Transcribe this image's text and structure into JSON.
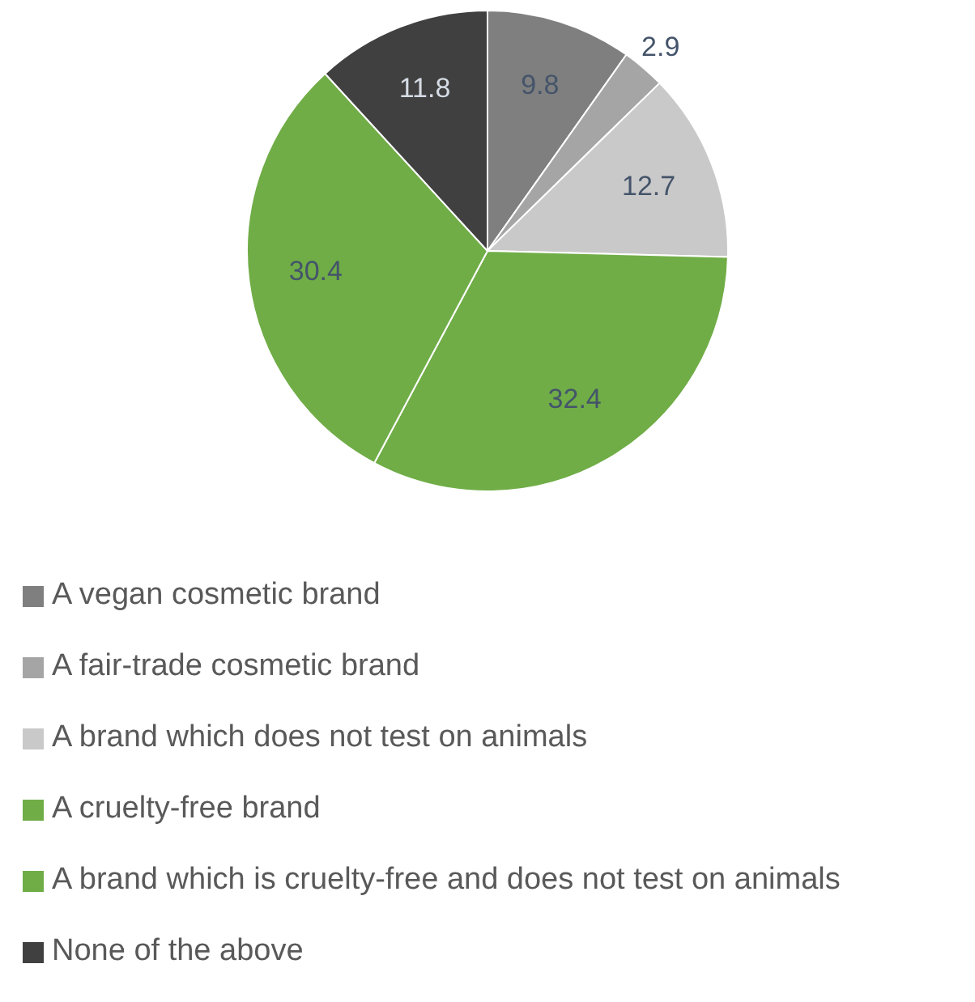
{
  "chart_data": {
    "type": "pie",
    "categories": [
      "A vegan cosmetic brand",
      "A fair-trade cosmetic brand",
      "A brand which does not test on animals",
      "A cruelty-free brand",
      "A brand which is cruelty-free and does not test on animals",
      "None of the above"
    ],
    "values": [
      9.8,
      2.9,
      12.7,
      32.4,
      30.4,
      11.8
    ],
    "colors": [
      "#7f7f7f",
      "#a5a5a5",
      "#c9c9c9",
      "#70ad47",
      "#70ad47",
      "#404040"
    ],
    "data_labels": true,
    "legend": "bottom"
  }
}
